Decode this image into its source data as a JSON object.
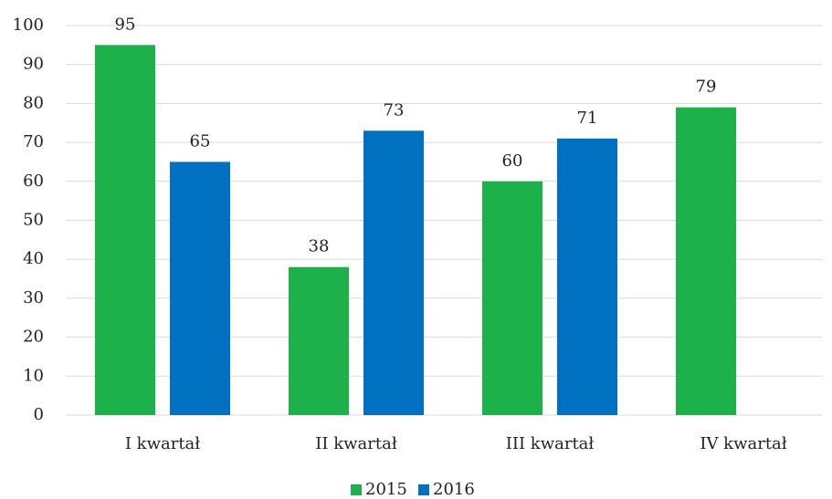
{
  "chart_data": {
    "type": "bar",
    "categories": [
      "I kwartał",
      "II kwartał",
      "III kwartał",
      "IV kwartał"
    ],
    "series": [
      {
        "name": "2015",
        "color": "#1db14b",
        "values": [
          95,
          38,
          60,
          79
        ]
      },
      {
        "name": "2016",
        "color": "#0070c0",
        "values": [
          65,
          73,
          71,
          null
        ]
      }
    ],
    "ylim": [
      0,
      100
    ],
    "yticks": [
      0,
      10,
      20,
      30,
      40,
      50,
      60,
      70,
      80,
      90,
      100
    ],
    "grid": true,
    "legend": "bottom"
  }
}
